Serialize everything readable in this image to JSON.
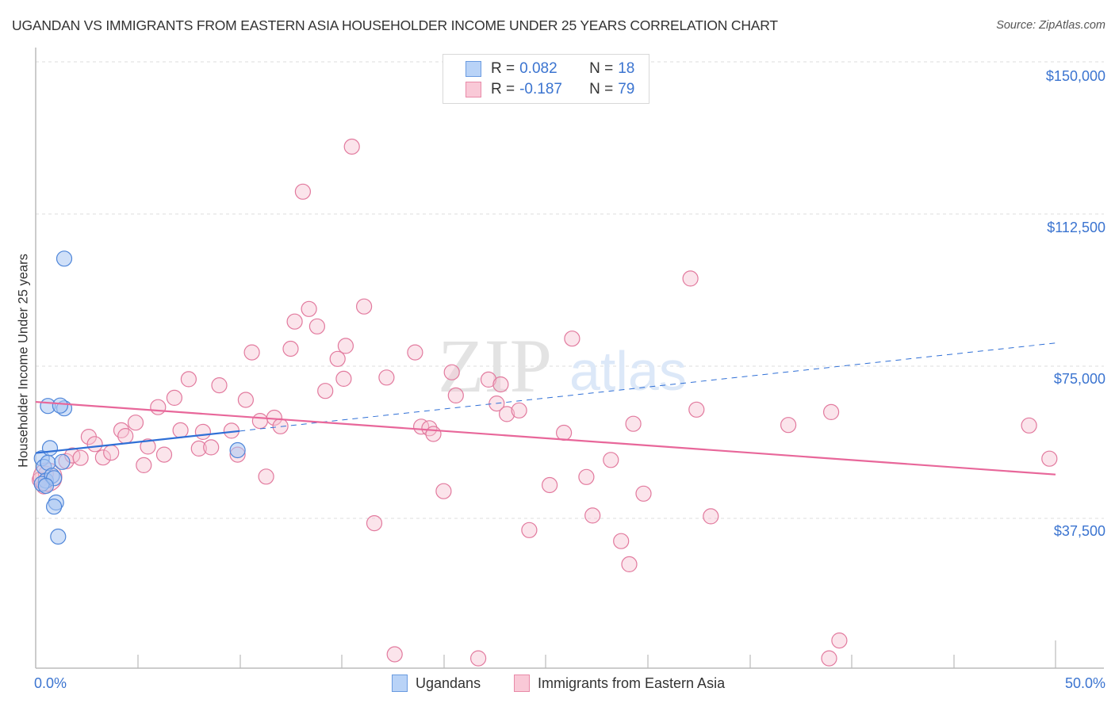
{
  "header": {
    "title": "UGANDAN VS IMMIGRANTS FROM EASTERN ASIA HOUSEHOLDER INCOME UNDER 25 YEARS CORRELATION CHART",
    "source": "Source: ZipAtlas.com"
  },
  "legend": {
    "series": [
      {
        "name": "Ugandans",
        "r_label": "R =",
        "r_value": "0.082",
        "n_label": "N =",
        "n_value": "18",
        "fill": "#b9d3f7",
        "stroke": "#6a9be0"
      },
      {
        "name": "Immigrants from Eastern Asia",
        "r_label": "R =",
        "r_value": "-0.187",
        "n_label": "N =",
        "n_value": "79",
        "fill": "#f9c9d7",
        "stroke": "#e88aa8"
      }
    ]
  },
  "axes": {
    "ylabel": "Householder Income Under 25 years",
    "yticks": [
      "$150,000",
      "$112,500",
      "$75,000",
      "$37,500"
    ],
    "xticks": [
      "0.0%",
      "50.0%"
    ]
  },
  "watermark": {
    "zip": "ZIP",
    "atlas": "atlas"
  },
  "colors": {
    "blue_line": "#2f6fd6",
    "pink_line": "#e8679a",
    "axis_text": "#3b74d0",
    "grid": "#dddddd"
  },
  "chart_data": {
    "type": "scatter",
    "title": "UGANDAN VS IMMIGRANTS FROM EASTERN ASIA HOUSEHOLDER INCOME UNDER 25 YEARS CORRELATION CHART",
    "xlabel": "",
    "ylabel": "Householder Income Under 25 years",
    "xlim": [
      0,
      50
    ],
    "ylim": [
      0,
      150000
    ],
    "x_unit": "%",
    "grid": true,
    "legend_position": "top-center / bottom",
    "series": [
      {
        "name": "Ugandans",
        "R": 0.082,
        "N": 18,
        "trend": {
          "x0": 0,
          "y0": 53600,
          "x1": 50,
          "y1": 80700,
          "solid_until_x": 10
        },
        "points": [
          [
            0.3,
            52300
          ],
          [
            0.4,
            50200
          ],
          [
            0.5,
            46800
          ],
          [
            0.3,
            46000
          ],
          [
            0.6,
            51200
          ],
          [
            0.8,
            48000
          ],
          [
            0.9,
            47400
          ],
          [
            0.7,
            54800
          ],
          [
            0.6,
            65200
          ],
          [
            1.4,
            64600
          ],
          [
            1.2,
            65300
          ],
          [
            1.0,
            41400
          ],
          [
            0.9,
            40400
          ],
          [
            1.1,
            33000
          ],
          [
            1.3,
            51400
          ],
          [
            1.4,
            101500
          ],
          [
            0.5,
            45500
          ],
          [
            9.9,
            54300
          ]
        ]
      },
      {
        "name": "Immigrants from Eastern Asia",
        "R": -0.187,
        "N": 79,
        "trend": {
          "x0": 0,
          "y0": 66200,
          "x1": 50,
          "y1": 48300
        },
        "points": [
          [
            0.2,
            47000
          ],
          [
            0.5,
            48500
          ],
          [
            1.5,
            51600
          ],
          [
            1.8,
            53000
          ],
          [
            2.2,
            52400
          ],
          [
            2.6,
            57600
          ],
          [
            2.9,
            55800
          ],
          [
            3.3,
            52500
          ],
          [
            3.7,
            53700
          ],
          [
            4.2,
            59200
          ],
          [
            4.4,
            57800
          ],
          [
            4.9,
            61100
          ],
          [
            5.3,
            50600
          ],
          [
            5.5,
            55200
          ],
          [
            6.0,
            64900
          ],
          [
            6.3,
            53200
          ],
          [
            6.8,
            67200
          ],
          [
            7.1,
            59200
          ],
          [
            7.5,
            71800
          ],
          [
            8.0,
            54700
          ],
          [
            8.2,
            58800
          ],
          [
            8.6,
            55000
          ],
          [
            9.0,
            70300
          ],
          [
            9.6,
            59100
          ],
          [
            9.9,
            53200
          ],
          [
            10.3,
            66700
          ],
          [
            10.6,
            78400
          ],
          [
            11.0,
            61500
          ],
          [
            11.3,
            47800
          ],
          [
            11.7,
            62300
          ],
          [
            12.0,
            60200
          ],
          [
            12.5,
            79300
          ],
          [
            12.7,
            86000
          ],
          [
            13.1,
            118000
          ],
          [
            13.4,
            89100
          ],
          [
            13.8,
            84800
          ],
          [
            14.2,
            68900
          ],
          [
            14.8,
            76800
          ],
          [
            15.1,
            71900
          ],
          [
            15.2,
            80000
          ],
          [
            15.5,
            129100
          ],
          [
            16.1,
            89700
          ],
          [
            16.6,
            36300
          ],
          [
            17.2,
            72200
          ],
          [
            17.6,
            4000
          ],
          [
            18.6,
            78400
          ],
          [
            18.9,
            60100
          ],
          [
            19.3,
            59700
          ],
          [
            19.5,
            58300
          ],
          [
            20.0,
            44200
          ],
          [
            20.4,
            73500
          ],
          [
            20.6,
            67800
          ],
          [
            21.7,
            3000
          ],
          [
            22.2,
            71700
          ],
          [
            22.6,
            65800
          ],
          [
            22.8,
            70500
          ],
          [
            23.1,
            63200
          ],
          [
            23.7,
            64100
          ],
          [
            24.2,
            34600
          ],
          [
            25.2,
            45700
          ],
          [
            25.9,
            58600
          ],
          [
            26.3,
            81800
          ],
          [
            27.0,
            47700
          ],
          [
            27.3,
            38200
          ],
          [
            28.2,
            51900
          ],
          [
            28.7,
            31900
          ],
          [
            29.1,
            26200
          ],
          [
            29.3,
            60800
          ],
          [
            29.8,
            43600
          ],
          [
            32.1,
            96600
          ],
          [
            32.4,
            64300
          ],
          [
            33.1,
            38000
          ],
          [
            36.9,
            60500
          ],
          [
            38.9,
            3000
          ],
          [
            39.0,
            63700
          ],
          [
            39.4,
            7400
          ],
          [
            48.7,
            60400
          ],
          [
            49.7,
            52200
          ],
          [
            0.4,
            45400
          ]
        ]
      }
    ]
  }
}
